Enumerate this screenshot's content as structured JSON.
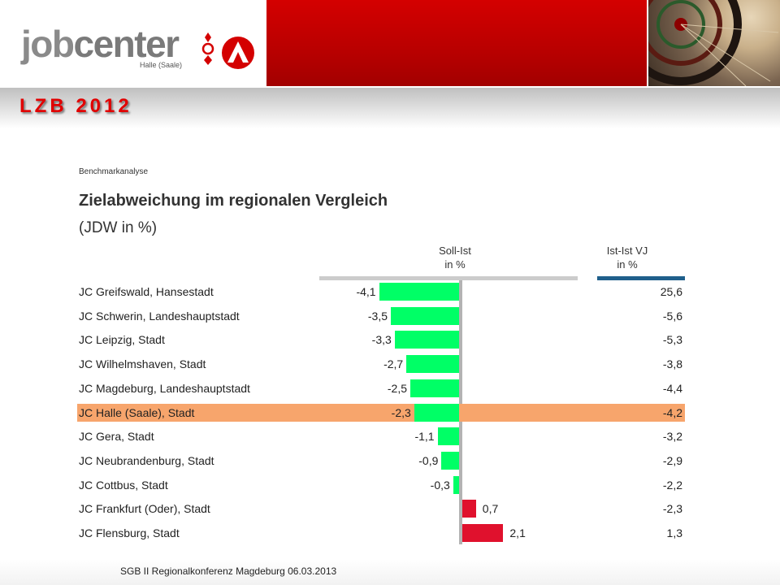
{
  "header": {
    "logo_text_a": "job",
    "logo_text_b": "center",
    "logo_sub": "Halle (Saale)",
    "slide_title": "LZB 2012"
  },
  "chart_data": {
    "type": "bar",
    "subtitle": "Benchmarkanalyse",
    "title": "Zielabweichung im regionalen Vergleich",
    "unit": "(JDW in %)",
    "col_soll_ist": "Soll-Ist",
    "col_soll_ist_unit": "in %",
    "col_ist_ist": "Ist-Ist VJ",
    "col_ist_ist_unit": "in %",
    "highlight_index": 5,
    "categories": [
      "JC Greifswald, Hansestadt",
      "JC Schwerin, Landeshauptstadt",
      "JC Leipzig, Stadt",
      "JC Wilhelmshaven, Stadt",
      "JC Magdeburg, Landeshauptstadt",
      "JC Halle (Saale), Stadt",
      "JC Gera, Stadt",
      "JC Neubrandenburg, Stadt",
      "JC Cottbus, Stadt",
      "JC Frankfurt (Oder), Stadt",
      "JC Flensburg, Stadt"
    ],
    "series": [
      {
        "name": "Soll-Ist",
        "values": [
          -4.1,
          -3.5,
          -3.3,
          -2.7,
          -2.5,
          -2.3,
          -1.1,
          -0.9,
          -0.3,
          0.7,
          2.1
        ]
      },
      {
        "name": "Ist-Ist VJ",
        "values": [
          25.6,
          -5.6,
          -5.3,
          -3.8,
          -4.4,
          -4.2,
          -3.2,
          -2.9,
          -2.2,
          -2.3,
          1.3
        ]
      }
    ],
    "labels_soll_ist": [
      "-4,1",
      "-3,5",
      "-3,3",
      "-2,7",
      "-2,5",
      "-2,3",
      "-1,1",
      "-0,9",
      "-0,3",
      "0,7",
      "2,1"
    ],
    "labels_ist_ist": [
      "25,6",
      "-5,6",
      "-5,3",
      "-3,8",
      "-4,4",
      "-4,2",
      "-3,2",
      "-2,9",
      "-2,2",
      "-2,3",
      "1,3"
    ],
    "colors": {
      "negative": "#00ff66",
      "positive": "#e0112d",
      "highlight": "#f7a56c",
      "axis": "#b3b3b3",
      "head_bar_1": "#cccccc",
      "head_bar_2": "#1f5f8b"
    }
  },
  "footer": {
    "text": "SGB II Regionalkonferenz Magdeburg 06.03.2013"
  }
}
